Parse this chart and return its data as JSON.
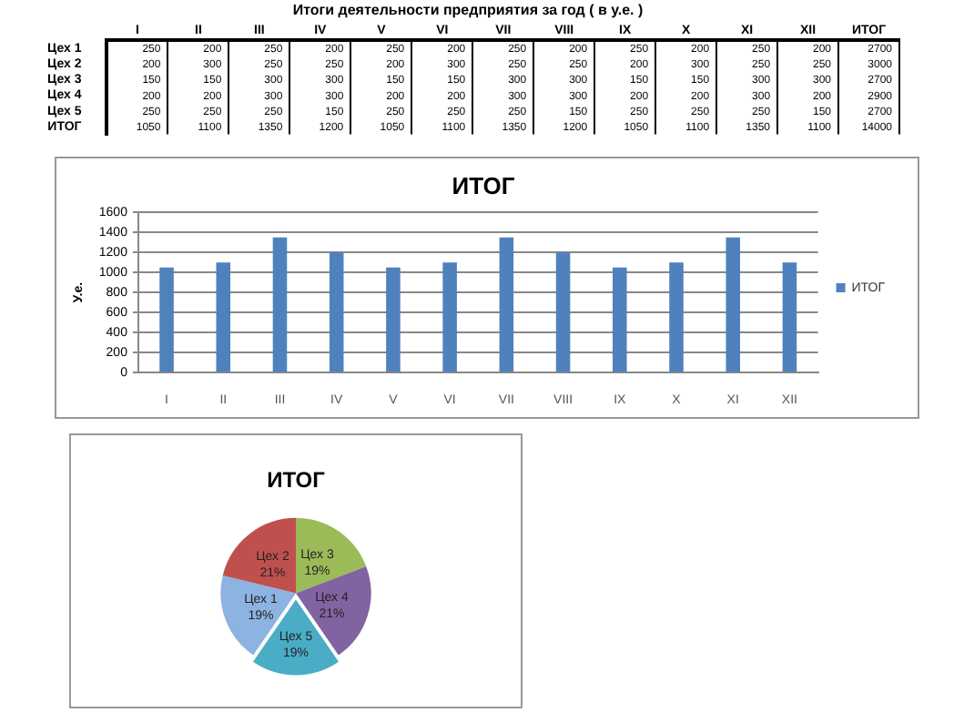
{
  "chart_data": [
    {
      "type": "heatmap",
      "title": "Итоги деятельности предприятия за год ( в у.е. )",
      "categories": [
        "I",
        "II",
        "III",
        "IV",
        "V",
        "VI",
        "VII",
        "VIII",
        "IX",
        "X",
        "XI",
        "XII",
        "ИТОГ"
      ],
      "y_categories": [
        "Цех 1",
        "Цех 2",
        "Цех 3",
        "Цех 4",
        "Цех 5",
        "ИТОГ"
      ],
      "data_labels": true,
      "cells": [
        [
          250,
          200,
          250,
          200,
          250,
          200,
          250,
          200,
          250,
          200,
          250,
          200,
          2700
        ],
        [
          200,
          300,
          250,
          250,
          200,
          300,
          250,
          250,
          200,
          300,
          250,
          250,
          3000
        ],
        [
          150,
          150,
          300,
          300,
          150,
          150,
          300,
          300,
          150,
          150,
          300,
          300,
          2700
        ],
        [
          200,
          200,
          300,
          300,
          200,
          200,
          300,
          300,
          200,
          200,
          300,
          200,
          2900
        ],
        [
          250,
          250,
          250,
          150,
          250,
          250,
          250,
          150,
          250,
          250,
          250,
          150,
          2700
        ],
        [
          1050,
          1100,
          1350,
          1200,
          1050,
          1100,
          1350,
          1200,
          1050,
          1100,
          1350,
          1100,
          14000
        ]
      ]
    },
    {
      "type": "bar",
      "title": "ИТОГ",
      "ylabel": "У.е.",
      "categories": [
        "I",
        "II",
        "III",
        "IV",
        "V",
        "VI",
        "VII",
        "VIII",
        "IX",
        "X",
        "XI",
        "XII"
      ],
      "series": [
        {
          "name": "ИТОГ",
          "color": "#4f81bd",
          "values": [
            1050,
            1100,
            1350,
            1200,
            1050,
            1100,
            1350,
            1200,
            1050,
            1100,
            1350,
            1100
          ]
        }
      ],
      "ylim": [
        0,
        1600
      ],
      "yticks": [
        0,
        200,
        400,
        600,
        800,
        1000,
        1200,
        1400,
        1600
      ],
      "grid": "y",
      "legend": "right"
    },
    {
      "type": "pie",
      "title": "ИТОГ",
      "categories": [
        "Цех 1",
        "Цех 2",
        "Цех 3",
        "Цех 4",
        "Цех 5"
      ],
      "values": [
        19,
        21,
        19,
        21,
        19
      ],
      "colors": [
        "#8db3e2",
        "#c0504d",
        "#9bbb59",
        "#8064a2",
        "#4bacc6"
      ],
      "value_labels": [
        "19%",
        "21%",
        "19%",
        "21%",
        "19%"
      ]
    }
  ]
}
